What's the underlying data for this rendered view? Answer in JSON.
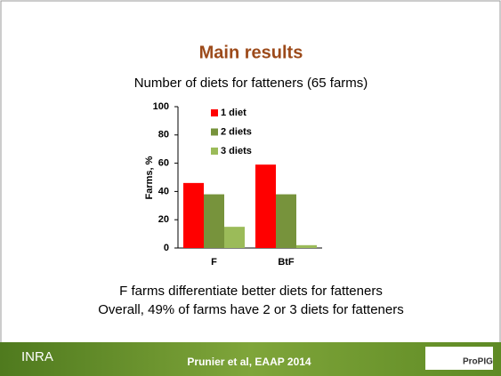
{
  "slide": {
    "title": "Main results",
    "conclusions": [
      "F farms differentiate better diets for fatteners",
      "Overall, 49% of farms have 2 or 3 diets for fatteners"
    ],
    "footer": "Prunier et al, EAAP 2014",
    "logo_left": "INRA",
    "logo_right": "ProPIG"
  },
  "chart_data": {
    "type": "bar",
    "title": "Number of diets for fatteners (65 farms)",
    "y_label": "Farms, %",
    "categories": [
      "F",
      "BtF"
    ],
    "series": [
      {
        "name": "1 diet",
        "color": "#ff0000",
        "values": [
          46,
          59
        ]
      },
      {
        "name": "2 diets",
        "color": "#77933c",
        "values": [
          38,
          38
        ]
      },
      {
        "name": "3 diets",
        "color": "#9bbb59",
        "values": [
          15,
          2
        ]
      }
    ],
    "ylim": [
      0,
      100
    ],
    "yticks": [
      0,
      20,
      40,
      60,
      80,
      100
    ],
    "legend": "top-left"
  }
}
